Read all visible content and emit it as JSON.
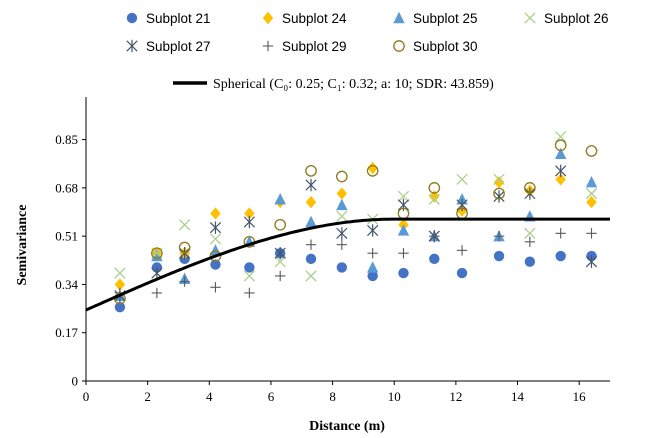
{
  "chart_data": {
    "type": "scatter",
    "xlabel": "Distance (m)",
    "ylabel": "Semivariance",
    "xlim": [
      0,
      17
    ],
    "ylim": [
      0,
      1.0
    ],
    "x_ticks": [
      0,
      2,
      4,
      6,
      8,
      10,
      12,
      14,
      16
    ],
    "y_ticks": [
      0,
      0.17,
      0.34,
      0.51,
      0.68,
      0.85
    ],
    "y_tick_labels": [
      "0",
      "0.17",
      "0.34",
      "0.51",
      "0.68",
      "0.85"
    ],
    "grid": false,
    "legend_position": "top",
    "x": [
      1.1,
      2.3,
      3.2,
      4.2,
      5.3,
      6.3,
      7.3,
      8.3,
      9.3,
      10.3,
      11.3,
      12.2,
      13.4,
      14.4,
      15.4,
      16.4
    ],
    "series": [
      {
        "name": "Subplot 21",
        "marker": "circle",
        "color": "#4472c4",
        "values": [
          0.26,
          0.4,
          0.43,
          0.41,
          0.4,
          0.45,
          0.43,
          0.4,
          0.37,
          0.38,
          0.43,
          0.38,
          0.44,
          0.42,
          0.44,
          0.44
        ]
      },
      {
        "name": "Subplot 24",
        "marker": "diamond",
        "color": "#ffc000",
        "values": [
          0.34,
          0.45,
          0.45,
          0.59,
          0.59,
          0.63,
          0.63,
          0.66,
          0.75,
          0.55,
          0.65,
          0.6,
          0.7,
          0.67,
          0.71,
          0.63
        ]
      },
      {
        "name": "Subplot 25",
        "marker": "triangle",
        "color": "#5b9bd5",
        "values": [
          0.3,
          0.44,
          0.36,
          0.46,
          0.49,
          0.64,
          0.56,
          0.62,
          0.4,
          0.53,
          0.51,
          0.64,
          0.51,
          0.58,
          0.8,
          0.7
        ]
      },
      {
        "name": "Subplot 26",
        "marker": "x",
        "color": "#a9d18e",
        "values": [
          0.38,
          0.45,
          0.55,
          0.5,
          0.37,
          0.42,
          0.37,
          0.58,
          0.57,
          0.65,
          0.64,
          0.71,
          0.71,
          0.52,
          0.86,
          0.66
        ]
      },
      {
        "name": "Subplot 27",
        "marker": "asterisk",
        "color": "#44546a",
        "values": [
          0.3,
          0.38,
          0.45,
          0.54,
          0.56,
          0.45,
          0.69,
          0.52,
          0.53,
          0.62,
          0.51,
          0.62,
          0.65,
          0.66,
          0.74,
          0.42
        ]
      },
      {
        "name": "Subplot 29",
        "marker": "plus",
        "color": "#595959",
        "values": [
          0.31,
          0.31,
          0.35,
          0.33,
          0.31,
          0.37,
          0.48,
          0.48,
          0.45,
          0.45,
          0.51,
          0.46,
          0.51,
          0.49,
          0.52,
          0.52
        ]
      },
      {
        "name": "Subplot 30",
        "marker": "open-circle",
        "color": "#8c7a1b",
        "values": [
          0.29,
          0.45,
          0.47,
          0.44,
          0.49,
          0.55,
          0.74,
          0.72,
          0.74,
          0.59,
          0.68,
          0.59,
          0.66,
          0.68,
          0.83,
          0.81
        ]
      }
    ],
    "model": {
      "label": "Spherical  (C₀: 0.25; C₁: 0.32; a: 10; SDR: 43.859)",
      "type": "spherical",
      "nugget": 0.25,
      "partial_sill": 0.32,
      "range": 10
    }
  }
}
